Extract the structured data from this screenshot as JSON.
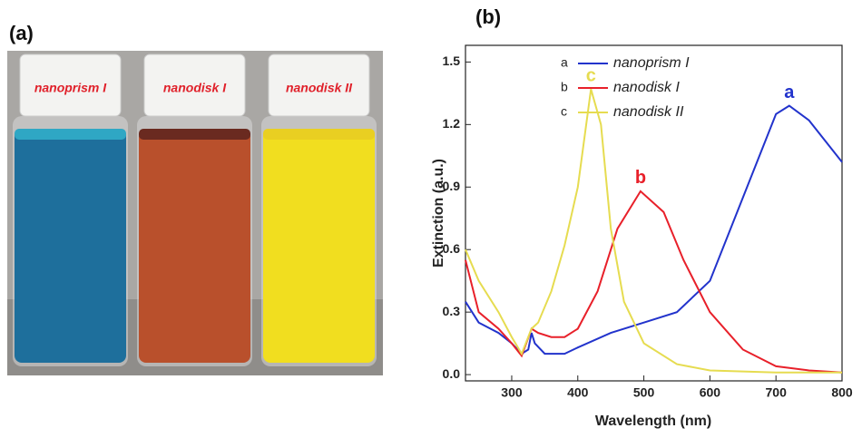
{
  "panel_a": {
    "label": "(a)",
    "vials": [
      "nanoprism I",
      "nanodisk I",
      "nanodisk II"
    ]
  },
  "chart_data": {
    "type": "line",
    "panel_label": "(b)",
    "x_label": "Wavelength (nm)",
    "y_label": "Extinction (a.u.)",
    "xlim": [
      230,
      800
    ],
    "ylim": [
      -0.03,
      1.58
    ],
    "xticks": [
      300,
      400,
      500,
      600,
      700,
      800
    ],
    "yticks": [
      {
        "value": 0,
        "label": "0.0"
      },
      0.3,
      0.6,
      0.9,
      1.2,
      1.5
    ],
    "legend": "upper left",
    "series": [
      {
        "name": "nanoprism I",
        "label": "a",
        "color": "#2233cc",
        "x": [
          230,
          250,
          280,
          300,
          315,
          325,
          330,
          335,
          350,
          380,
          400,
          450,
          500,
          550,
          600,
          650,
          700,
          720,
          750,
          800
        ],
        "values": [
          0.35,
          0.25,
          0.2,
          0.15,
          0.1,
          0.12,
          0.2,
          0.15,
          0.1,
          0.1,
          0.13,
          0.2,
          0.25,
          0.3,
          0.45,
          0.85,
          1.25,
          1.29,
          1.22,
          1.02
        ]
      },
      {
        "name": "nanodisk I",
        "label": "b",
        "color": "#e8202a",
        "x": [
          230,
          250,
          280,
          300,
          315,
          330,
          340,
          360,
          380,
          400,
          430,
          460,
          495,
          530,
          560,
          600,
          650,
          700,
          750,
          800
        ],
        "values": [
          0.55,
          0.3,
          0.22,
          0.15,
          0.09,
          0.22,
          0.2,
          0.18,
          0.18,
          0.22,
          0.4,
          0.7,
          0.88,
          0.78,
          0.55,
          0.3,
          0.12,
          0.04,
          0.02,
          0.01
        ]
      },
      {
        "name": "nanodisk II",
        "label": "c",
        "color": "#e6dc50",
        "x": [
          230,
          250,
          280,
          300,
          315,
          330,
          340,
          360,
          380,
          400,
          420,
          435,
          450,
          470,
          500,
          550,
          600,
          700,
          800
        ],
        "values": [
          0.6,
          0.45,
          0.3,
          0.18,
          0.1,
          0.22,
          0.25,
          0.4,
          0.62,
          0.9,
          1.37,
          1.2,
          0.7,
          0.35,
          0.15,
          0.05,
          0.02,
          0.01,
          0.01
        ]
      }
    ]
  }
}
